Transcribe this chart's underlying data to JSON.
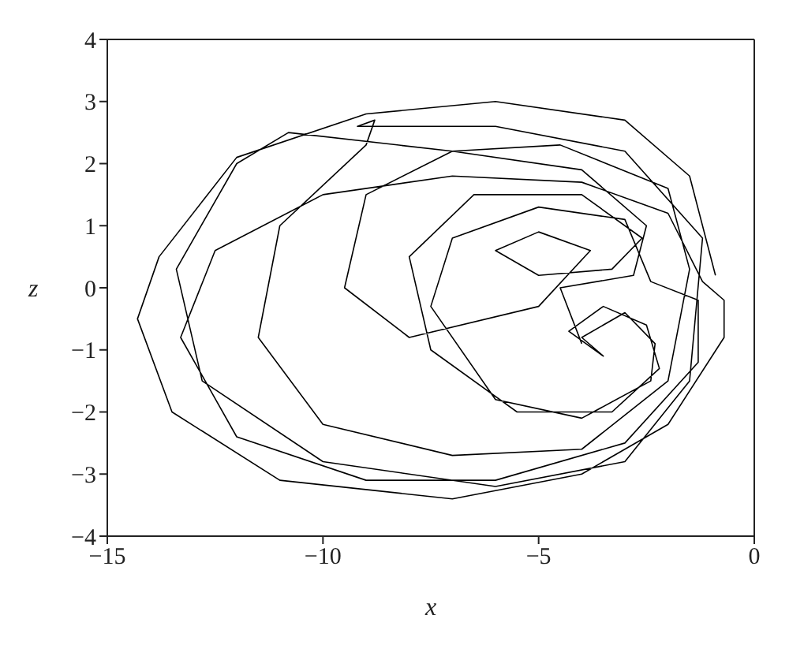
{
  "chart_data": {
    "type": "line",
    "xlabel": "x",
    "ylabel": "z",
    "xlim": [
      -15,
      0
    ],
    "ylim": [
      -4,
      4
    ],
    "xticks": [
      {
        "value": -15,
        "label": "−15"
      },
      {
        "value": -10,
        "label": "−10"
      },
      {
        "value": -5,
        "label": "−5"
      },
      0
    ],
    "yticks": [
      {
        "value": -4,
        "label": "−4"
      },
      {
        "value": -3,
        "label": "−3"
      },
      {
        "value": -2,
        "label": "−2"
      },
      {
        "value": -1,
        "label": "−1"
      },
      0,
      1,
      2,
      3,
      4
    ],
    "marker": "none",
    "line_style": "solid",
    "series": [
      {
        "color": "#000000",
        "x": [
          -0.9,
          -1.5,
          -3,
          -6,
          -9,
          -12,
          -13.8,
          -14.3,
          -13.5,
          -11,
          -7,
          -4,
          -2,
          -0.7,
          -0.7,
          -1.2,
          -2,
          -4,
          -7,
          -10,
          -12.5,
          -13.3,
          -12,
          -9,
          -6,
          -3,
          -1.3,
          -1.3,
          -2.4,
          -3,
          -5,
          -7,
          -7.5,
          -6,
          -4,
          -2.4,
          -2.3,
          -3,
          -4,
          -3.5,
          -4.3,
          -3.5,
          -2.5,
          -2.2,
          -3.3,
          -5.5,
          -7.5,
          -8,
          -6.5,
          -4,
          -2.6,
          -3.3,
          -5,
          -6,
          -5,
          -3.8,
          -5,
          -8,
          -9.5,
          -9,
          -7,
          -4.5,
          -2,
          -1.5,
          -2,
          -4,
          -7,
          -10,
          -11.5,
          -11,
          -9,
          -8.8,
          -9.2,
          -6,
          -3,
          -1.2,
          -1.5,
          -3,
          -6,
          -10,
          -12.8,
          -13.4,
          -12,
          -10.8,
          -7,
          -4,
          -2.5,
          -2.8,
          -4.5,
          -4
        ],
        "values": [
          0.2,
          1.8,
          2.7,
          3.0,
          2.8,
          2.1,
          0.5,
          -0.5,
          -2,
          -3.1,
          -3.4,
          -3.0,
          -2.2,
          -0.8,
          -0.2,
          0.1,
          1.2,
          1.7,
          1.8,
          1.5,
          0.6,
          -0.8,
          -2.4,
          -3.1,
          -3.1,
          -2.5,
          -1.2,
          -0.2,
          0.1,
          1.1,
          1.3,
          0.8,
          -0.3,
          -1.8,
          -2.1,
          -1.5,
          -0.9,
          -0.4,
          -0.8,
          -1.1,
          -0.7,
          -0.3,
          -0.6,
          -1.3,
          -2,
          -2,
          -1,
          0.5,
          1.5,
          1.5,
          0.8,
          0.3,
          0.2,
          0.6,
          0.9,
          0.6,
          -0.3,
          -0.8,
          0,
          1.5,
          2.2,
          2.3,
          1.6,
          0.3,
          -1.5,
          -2.6,
          -2.7,
          -2.2,
          -0.8,
          1,
          2.3,
          2.7,
          2.6,
          2.6,
          2.2,
          0.8,
          -1.5,
          -2.8,
          -3.2,
          -2.8,
          -1.5,
          0.3,
          2,
          2.5,
          2.2,
          1.9,
          1.0,
          0.2,
          0.0,
          -0.9
        ]
      }
    ]
  }
}
